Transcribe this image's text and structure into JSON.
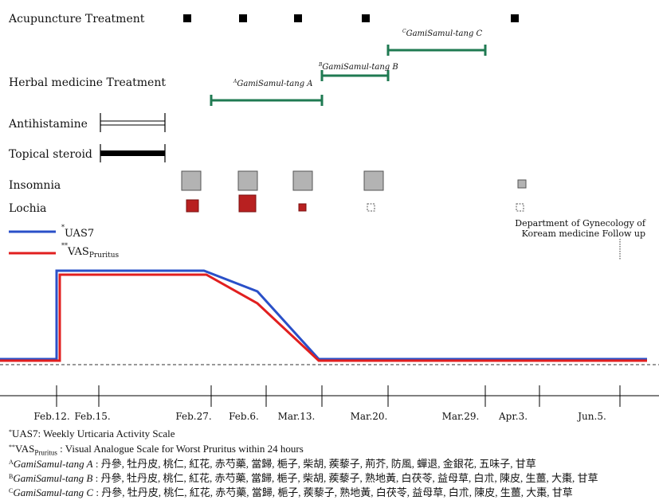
{
  "rows": {
    "acupuncture": "Acupuncture Treatment",
    "herbal": "Herbal medicine Treatment",
    "antihistamine": "Antihistamine",
    "topical": "Topical steroid",
    "insomnia": "Insomnia",
    "lochia": "Lochia"
  },
  "herbal_labels": {
    "a_sup": "A",
    "a_name": "GamiSamul-tang A",
    "b_sup": "B",
    "b_name": "GamiSamul-tang B",
    "c_sup": "C",
    "c_name": "GamiSamul-tang C"
  },
  "legend": {
    "uas_mark": "*",
    "uas_label": "UAS7",
    "vas_mark": "**",
    "vas_label": "VAS",
    "vas_sub": "Pruritus"
  },
  "followup": {
    "line1": "Department of Gynecology of",
    "line2": "Koream medicine Follow up"
  },
  "timeline": {
    "ticks": [
      "Feb.12.",
      "Feb.15.",
      "Feb.27.",
      "Feb.6.",
      "Mar.13.",
      "Mar.20.",
      "Mar.29.",
      "Apr.3.",
      "Jun.5."
    ]
  },
  "footnotes": {
    "uas_mark": "*",
    "uas_text": "UAS7: Weekly Urticaria Activity Scale",
    "vas_mark": "**",
    "vas_abbr": "VAS",
    "vas_sub": "Pruritus",
    "vas_text": " : Visual Analogue Scale for Worst Pruritus within 24 hours",
    "a_sup": "A",
    "a_name": "GamiSamul-tang A",
    "a_text": " : 丹參, 牡丹皮, 桃仁, 紅花, 赤芍藥, 當歸, 梔子, 柴胡, 蒺藜子, 荊芥, 防風, 蟬退, 金銀花, 五味子, 甘草",
    "b_sup": "B",
    "b_name": "GamiSamul-tang B",
    "b_text": " : 丹參, 牡丹皮, 桃仁, 紅花, 赤芍藥, 當歸, 梔子, 柴胡, 蒺藜子, 熟地黃, 白茯苓, 益母草, 白朮, 陳皮, 生薑, 大棗, 甘草",
    "c_sup": "C",
    "c_name": "GamiSamul-tang C",
    "c_text": " : 丹參, 牡丹皮, 桃仁, 紅花, 赤芍藥, 當歸, 梔子, 蒺藜子, 熟地黃, 白茯苓, 益母草, 白朮, 陳皮, 生薑, 大棗, 甘草"
  },
  "colors": {
    "uas_line": "#2a50c8",
    "vas_line": "#e11f1f",
    "herbal_bar": "#1f7a52",
    "insomnia_fill": "#b3b3b3",
    "lochia_fill": "#b82020"
  }
}
